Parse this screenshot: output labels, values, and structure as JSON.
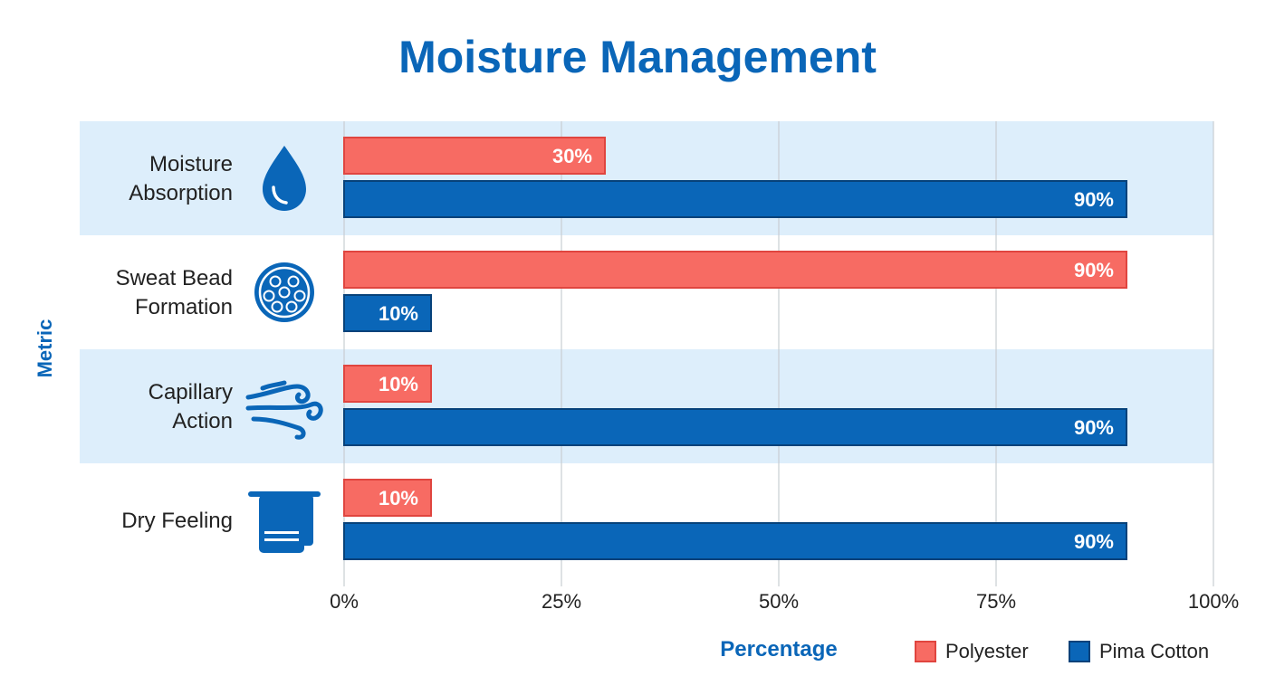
{
  "chart_data": {
    "type": "bar",
    "orientation": "horizontal",
    "title": "Moisture Management",
    "xlabel": "Percentage",
    "ylabel": "Metric",
    "xlim": [
      0,
      100
    ],
    "x_ticks": [
      "0%",
      "25%",
      "50%",
      "75%",
      "100%"
    ],
    "grid": true,
    "legend_position": "bottom-right",
    "categories": [
      {
        "label_lines": [
          "Moisture",
          "Absorption"
        ],
        "icon": "water-drop-icon"
      },
      {
        "label_lines": [
          "Sweat Bead",
          "Formation"
        ],
        "icon": "sweat-beads-icon"
      },
      {
        "label_lines": [
          "Capillary",
          "Action"
        ],
        "icon": "wind-flow-icon"
      },
      {
        "label_lines": [
          "Dry Feeling"
        ],
        "icon": "towel-icon"
      }
    ],
    "series": [
      {
        "name": "Polyester",
        "color": "#f76b63",
        "border": "#e0453f",
        "values": [
          30,
          90,
          10,
          10
        ],
        "labels": [
          "30%",
          "90%",
          "10%",
          "10%"
        ]
      },
      {
        "name": "Pima Cotton",
        "color": "#0a66b8",
        "border": "#07427a",
        "values": [
          90,
          10,
          90,
          90
        ],
        "labels": [
          "90%",
          "10%",
          "90%",
          "90%"
        ]
      }
    ],
    "colors": {
      "band": "#ddeefb",
      "grid": "#c9ced3",
      "axis_text": "#222222",
      "accent": "#0a66b8"
    }
  }
}
